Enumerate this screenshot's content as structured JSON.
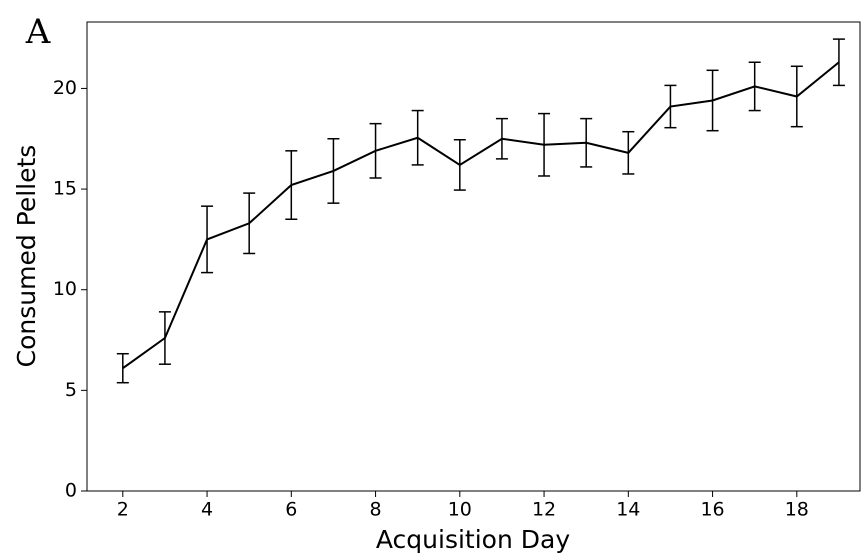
{
  "chart_data": {
    "type": "line",
    "panel_label": "A",
    "x_label": "Acquisition Day",
    "y_label": "Consumed Pellets",
    "x": [
      2,
      3,
      4,
      5,
      6,
      7,
      8,
      9,
      10,
      11,
      12,
      13,
      14,
      15,
      16,
      17,
      18,
      19
    ],
    "series": [
      {
        "color": "#000000",
        "values": [
          6.1,
          7.6,
          12.5,
          13.3,
          15.2,
          15.9,
          16.9,
          17.55,
          16.2,
          17.5,
          17.2,
          17.3,
          16.8,
          19.1,
          19.4,
          20.1,
          19.6,
          21.3
        ],
        "errors": [
          0.72,
          1.3,
          1.65,
          1.5,
          1.7,
          1.6,
          1.35,
          1.35,
          1.25,
          1.0,
          1.55,
          1.2,
          1.05,
          1.05,
          1.5,
          1.2,
          1.5,
          1.15
        ]
      }
    ],
    "xlim": [
      1.15,
      19.5
    ],
    "ylim": [
      0,
      23.3
    ],
    "xticks": [
      2,
      4,
      6,
      8,
      10,
      12,
      14,
      16,
      18
    ],
    "yticks": [
      0,
      5,
      10,
      15,
      20
    ]
  }
}
